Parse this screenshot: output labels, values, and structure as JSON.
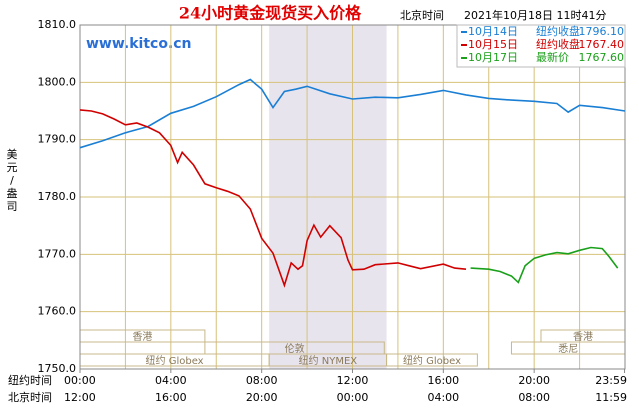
{
  "chart_data": {
    "type": "line",
    "title": "24小时黄金现货买入价格",
    "header_time_label": "北京时间",
    "header_time": "2021年10月18日 11时41分",
    "watermark": "www.kitco.cn",
    "ylabel": "美元/盎司",
    "ylim": [
      1750,
      1810
    ],
    "yticks": [
      {
        "value": 1750,
        "label": "1750.0"
      },
      {
        "value": 1760,
        "label": "1760.0"
      },
      {
        "value": 1770,
        "label": "1770.0"
      },
      {
        "value": 1780,
        "label": "1780.0"
      },
      {
        "value": 1790,
        "label": "1790.0"
      },
      {
        "value": 1800,
        "label": "1800.0"
      },
      {
        "value": 1810,
        "label": "1810.0"
      }
    ],
    "xlim": [
      0,
      24
    ],
    "xgrid_ticks": [
      2,
      4,
      6,
      8,
      10,
      12,
      14,
      16,
      18,
      20,
      22
    ],
    "xaxis_label": "纽约时间",
    "xticks": [
      {
        "value": 0,
        "label": "00:00"
      },
      {
        "value": 4,
        "label": "04:00"
      },
      {
        "value": 8,
        "label": "08:00"
      },
      {
        "value": 12,
        "label": "12:00"
      },
      {
        "value": 16,
        "label": "16:00"
      },
      {
        "value": 20,
        "label": "20:00"
      },
      {
        "value": 23.98,
        "label": "23:59"
      }
    ],
    "xaxis2_label": "北京时间",
    "xticks2": [
      {
        "value": 0,
        "label": "12:00"
      },
      {
        "value": 4,
        "label": "16:00"
      },
      {
        "value": 8,
        "label": "20:00"
      },
      {
        "value": 12,
        "label": "00:00"
      },
      {
        "value": 16,
        "label": "04:00"
      },
      {
        "value": 20,
        "label": "08:00"
      },
      {
        "value": 23.98,
        "label": "11:59"
      }
    ],
    "shade": [
      8.33,
      13.5
    ],
    "sessions": [
      [
        {
          "name": "香港",
          "start": 0,
          "end": 5.5
        },
        {
          "name": "香港",
          "start": 20.3,
          "end": 24
        }
      ],
      [
        {
          "name": "伦敦",
          "start": 5.5,
          "end": 13.4
        },
        {
          "name": "悉尼",
          "start": 19,
          "end": 24
        }
      ],
      [
        {
          "name": "纽约 Globex",
          "start": 0,
          "end": 8.33
        },
        {
          "name": "纽约 NYMEX",
          "start": 8.33,
          "end": 13.5
        },
        {
          "name": "纽约 Globex",
          "start": 13.5,
          "end": 17.5
        }
      ]
    ],
    "grid": true,
    "series": [
      {
        "name": "10月14日",
        "legend_label": "纽约收盘",
        "legend_value": 1796.1,
        "legend_value_label": "1796.10",
        "color": "#1a7fd4",
        "x": [
          0,
          1,
          2,
          3,
          4,
          5,
          6,
          7,
          7.5,
          8,
          8.5,
          9,
          9.5,
          10,
          11,
          12,
          13,
          14,
          15,
          16,
          17,
          18,
          19,
          20,
          21,
          21.5,
          22,
          23,
          24
        ],
        "values": [
          1788.6,
          1789.8,
          1791.2,
          1792.3,
          1794.6,
          1795.8,
          1797.5,
          1799.6,
          1800.5,
          1798.8,
          1795.6,
          1798.4,
          1798.8,
          1799.3,
          1798.0,
          1797.1,
          1797.4,
          1797.3,
          1797.9,
          1798.6,
          1797.8,
          1797.2,
          1796.9,
          1796.7,
          1796.3,
          1794.8,
          1796.0,
          1795.6,
          1795.0
        ]
      },
      {
        "name": "10月15日",
        "legend_label": "纽约收盘",
        "legend_value": 1767.4,
        "legend_value_label": "1767.40",
        "color": "#d00000",
        "x": [
          0,
          0.5,
          1,
          1.5,
          2,
          2.5,
          3,
          3.5,
          4,
          4.3,
          4.5,
          5,
          5.5,
          6,
          6.5,
          7,
          7.5,
          8,
          8.5,
          9,
          9.3,
          9.6,
          9.8,
          10,
          10.3,
          10.6,
          11,
          11.5,
          11.8,
          12,
          12.5,
          13,
          14,
          14.5,
          15,
          16,
          16.5,
          17
        ],
        "values": [
          1795.2,
          1795.0,
          1794.5,
          1793.6,
          1792.6,
          1792.9,
          1792.2,
          1791.2,
          1789.0,
          1786.0,
          1787.8,
          1785.6,
          1782.3,
          1781.6,
          1781.0,
          1780.2,
          1777.9,
          1772.8,
          1770.2,
          1764.6,
          1768.5,
          1767.4,
          1768.0,
          1772.4,
          1775.1,
          1773.0,
          1775.0,
          1772.9,
          1769.0,
          1767.3,
          1767.4,
          1768.2,
          1768.5,
          1768.0,
          1767.5,
          1768.3,
          1767.6,
          1767.4
        ]
      },
      {
        "name": "10月17日",
        "legend_label": "最新价",
        "legend_value": 1767.6,
        "legend_value_label": "1767.60",
        "color": "#1aa01a",
        "x": [
          17.2,
          18,
          18.5,
          19,
          19.3,
          19.6,
          20,
          20.5,
          21,
          21.5,
          22,
          22.5,
          23,
          23.3,
          23.68
        ],
        "values": [
          1767.6,
          1767.4,
          1767.0,
          1766.2,
          1765.1,
          1768.0,
          1769.3,
          1769.9,
          1770.3,
          1770.1,
          1770.7,
          1771.2,
          1771.0,
          1769.6,
          1767.6
        ]
      }
    ]
  }
}
